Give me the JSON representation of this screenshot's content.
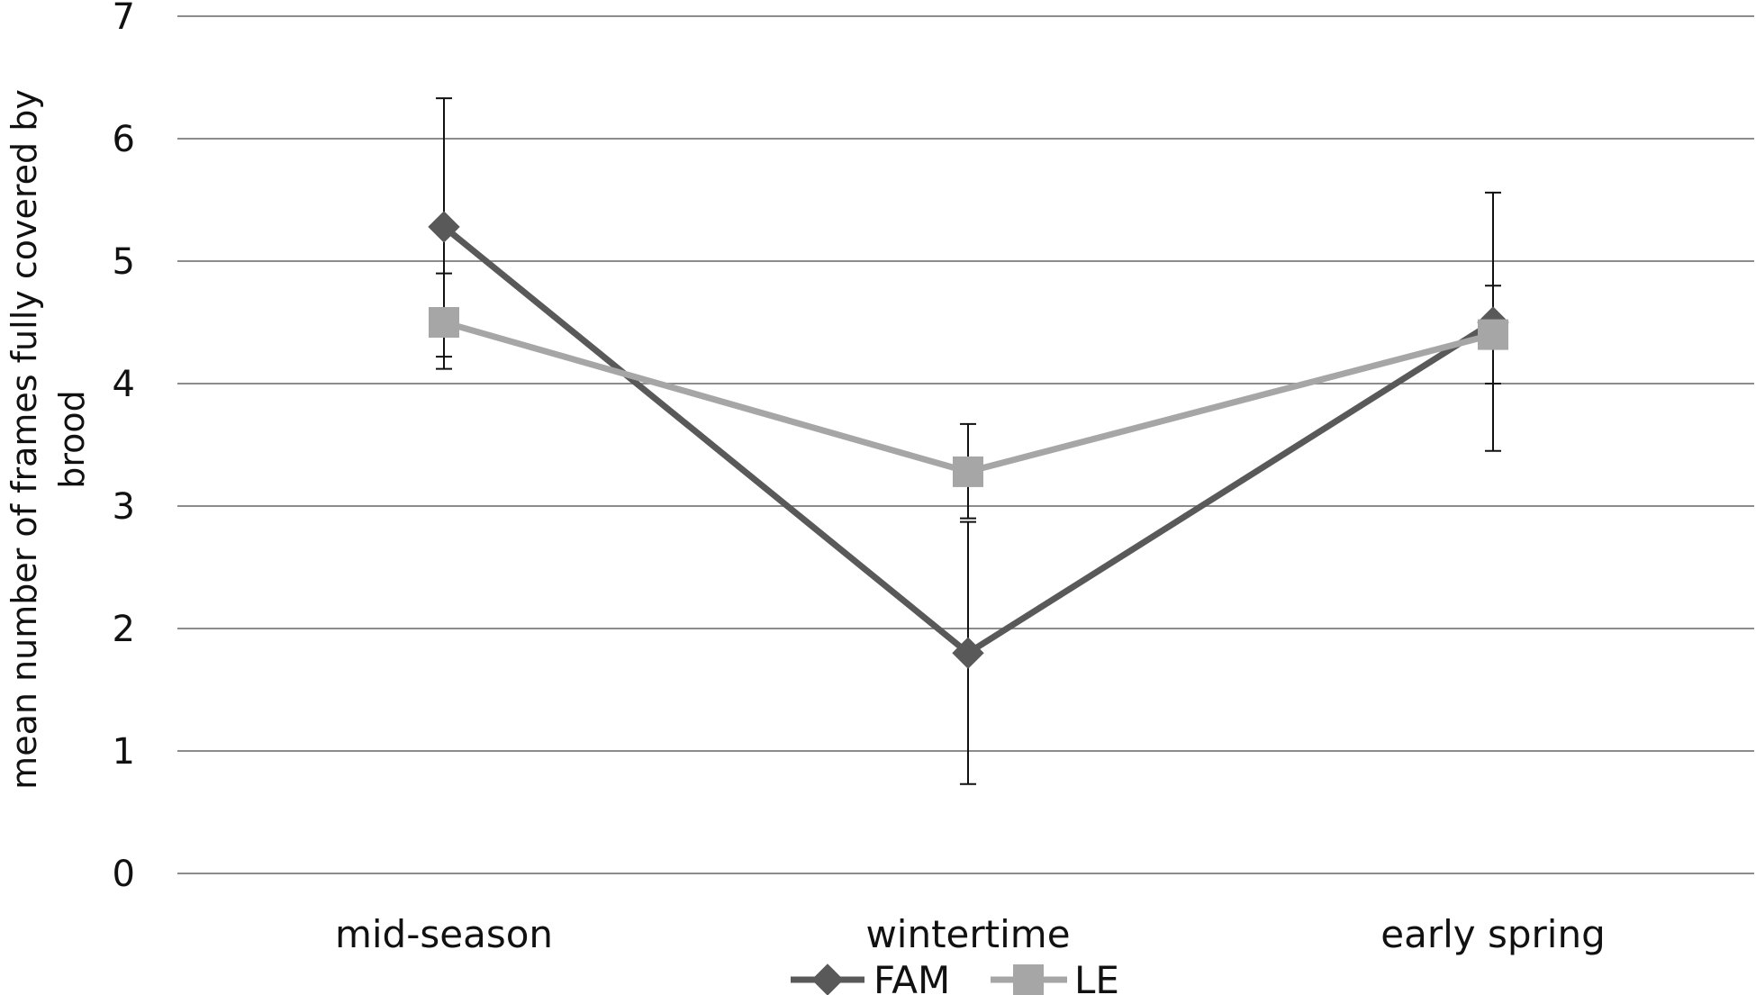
{
  "chart_data": {
    "type": "line",
    "ylabel_line1": "mean number of frames fully covered by",
    "ylabel_line2": "brood",
    "ylim": [
      0,
      7
    ],
    "yticks": [
      0,
      1,
      2,
      3,
      4,
      5,
      6,
      7
    ],
    "categories": [
      "mid-season",
      "wintertime",
      "early spring"
    ],
    "grid": true,
    "legend_position": "bottom",
    "series": [
      {
        "name": "FAM",
        "color": "#595959",
        "marker": "diamond",
        "values": [
          5.28,
          1.8,
          4.5
        ],
        "error_low": [
          4.22,
          0.73,
          3.45
        ],
        "error_high": [
          6.33,
          2.87,
          5.56
        ]
      },
      {
        "name": "LE",
        "color": "#a6a6a6",
        "marker": "square",
        "values": [
          4.5,
          3.28,
          4.4
        ],
        "error_low": [
          4.12,
          2.9,
          4.0
        ],
        "error_high": [
          4.9,
          3.67,
          4.8
        ]
      }
    ]
  }
}
